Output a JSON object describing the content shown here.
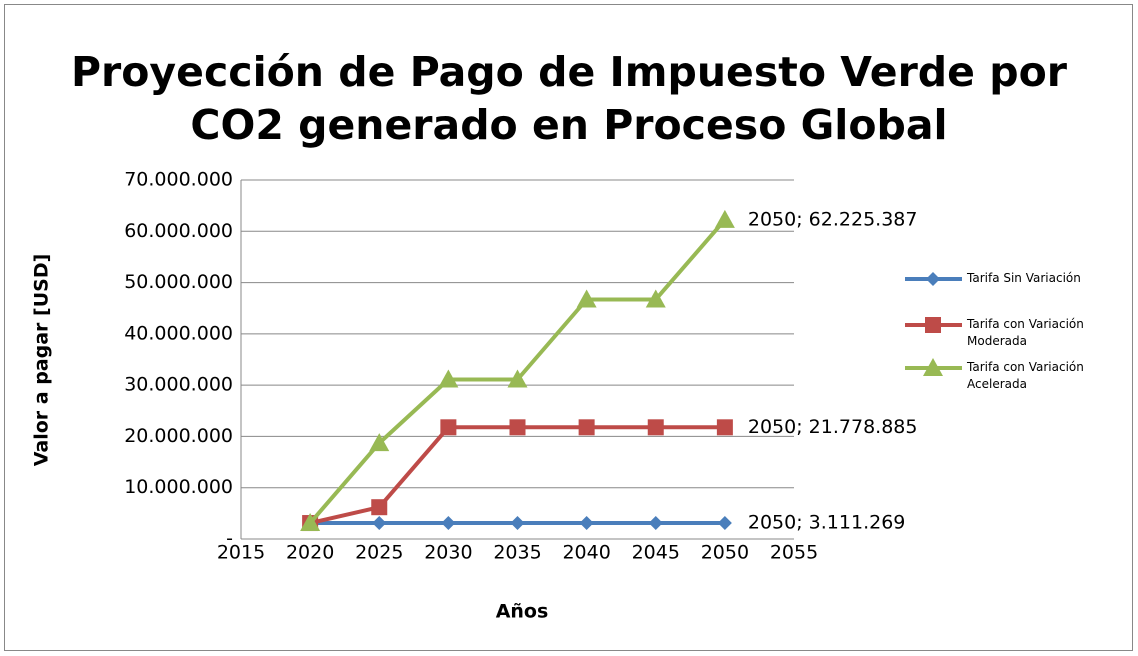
{
  "chart_data": {
    "type": "line",
    "title": "Proyección de Pago de Impuesto Verde por CO2 generado en Proceso Global",
    "x_label": "Años",
    "y_label": "Valor a pagar [USD]",
    "x": [
      2020,
      2025,
      2030,
      2035,
      2040,
      2045,
      2050
    ],
    "series": [
      {
        "name": "Tarifa Sin Variación",
        "color": "#4a7ebb",
        "marker": "diamond",
        "values": [
          3111269,
          3111269,
          3111269,
          3111269,
          3111269,
          3111269,
          3111269
        ],
        "value_labels": [
          null,
          null,
          null,
          null,
          null,
          null,
          "2050;  3.111.269"
        ]
      },
      {
        "name": "Tarifa con Variación Moderada",
        "color": "#be4b48",
        "marker": "square",
        "values": [
          3111269,
          6200000,
          21778885,
          21778885,
          21778885,
          21778885,
          21778885
        ],
        "value_labels": [
          null,
          null,
          null,
          null,
          null,
          null,
          "2050;  21.778.885"
        ]
      },
      {
        "name": "Tarifa con Variación Acelerada",
        "color": "#98b954",
        "marker": "triangle",
        "values": [
          3111269,
          18700000,
          31100000,
          31100000,
          46700000,
          46700000,
          62225387
        ],
        "value_labels": [
          null,
          null,
          null,
          null,
          null,
          null,
          "2050;  62.225.387"
        ]
      }
    ],
    "xlim": [
      2015,
      2055
    ],
    "xticks": [
      2015,
      2020,
      2025,
      2030,
      2035,
      2040,
      2045,
      2050,
      2055
    ],
    "ylim": [
      0,
      70000000
    ],
    "yticks": [
      {
        "value": 0,
        "label": "-"
      },
      {
        "value": 10000000,
        "label": "10.000.000"
      },
      {
        "value": 20000000,
        "label": "20.000.000"
      },
      {
        "value": 30000000,
        "label": "30.000.000"
      },
      {
        "value": 40000000,
        "label": "40.000.000"
      },
      {
        "value": 50000000,
        "label": "50.000.000"
      },
      {
        "value": 60000000,
        "label": "60.000.000"
      },
      {
        "value": 70000000,
        "label": "70.000.000"
      }
    ],
    "grid": true,
    "legend": "right"
  }
}
